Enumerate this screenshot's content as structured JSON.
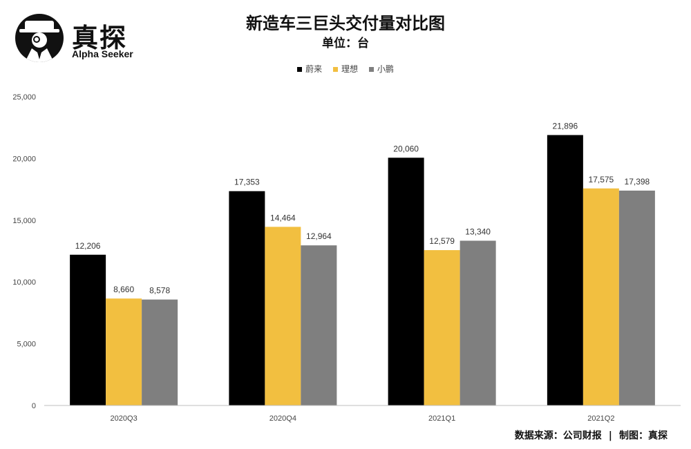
{
  "logo": {
    "brand": "真探",
    "sub": "Alpha Seeker"
  },
  "title": "新造车三巨头交付量对比图",
  "subtitle": "单位：台",
  "source": "数据来源：公司财报 | 制图：真探",
  "colors": {
    "nio": "#000000",
    "li": "#f2bf40",
    "xpeng": "#7f7f7f",
    "axis": "#bfbfbf"
  },
  "chart_data": {
    "type": "bar",
    "title": "新造车三巨头交付量对比图",
    "subtitle": "单位：台",
    "categories": [
      "2020Q3",
      "2020Q4",
      "2021Q1",
      "2021Q2"
    ],
    "series": [
      {
        "name": "蔚来",
        "values": [
          12206,
          17353,
          20060,
          21896
        ],
        "labels": [
          "12,206",
          "17,353",
          "20,060",
          "21,896"
        ]
      },
      {
        "name": "理想",
        "values": [
          8660,
          14464,
          12579,
          17575
        ],
        "labels": [
          "8,660",
          "14,464",
          "12,579",
          "17,575"
        ]
      },
      {
        "name": "小鹏",
        "values": [
          8578,
          12964,
          13340,
          17398
        ],
        "labels": [
          "8,578",
          "12,964",
          "13,340",
          "17,398"
        ]
      }
    ],
    "yticks": [
      0,
      5000,
      10000,
      15000,
      20000,
      25000
    ],
    "ytick_labels": [
      "0",
      "5,000",
      "10,000",
      "15,000",
      "20,000",
      "25,000"
    ],
    "ylim": [
      0,
      25000
    ],
    "grid": false,
    "legend": "top-center"
  }
}
